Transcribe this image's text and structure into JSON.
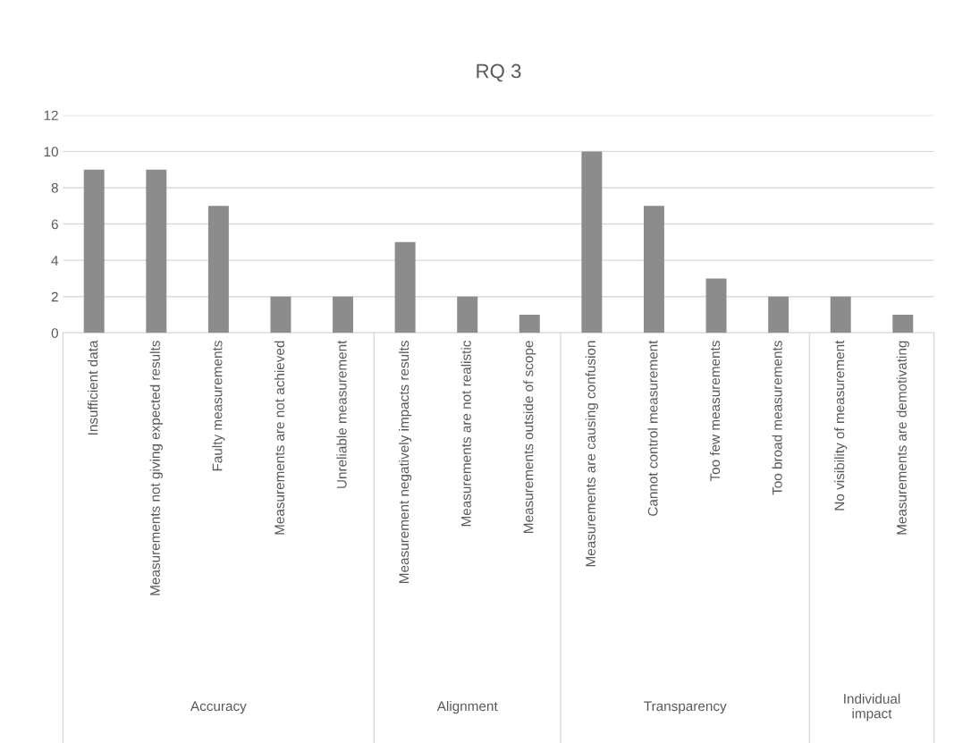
{
  "chart_data": {
    "type": "bar",
    "title": "RQ 3",
    "categories": [
      "Insufficient data",
      "Measurements not giving expected results",
      "Faulty measurements",
      "Measurements are not achieved",
      "Unreliable measurement",
      "Measurement negatively impacts results",
      "Measurements are not realistic",
      "Measurements outside of scope",
      "Measurements are causing confusion",
      "Cannot control measurement",
      "Too few measurements",
      "Too broad measurements",
      "No visibility of measurement",
      "Measurements are demotivating"
    ],
    "values": [
      9,
      9,
      7,
      2,
      2,
      5,
      2,
      1,
      10,
      7,
      3,
      2,
      2,
      1
    ],
    "color": "#8c8c8c",
    "ylim": [
      0,
      12
    ],
    "yticks": [
      0,
      2,
      4,
      6,
      8,
      10,
      12
    ],
    "grid": "y",
    "legend": false,
    "annotations": [
      "Accuracy",
      "Alignment",
      "Transparency",
      "Individual\nimpact"
    ]
  }
}
